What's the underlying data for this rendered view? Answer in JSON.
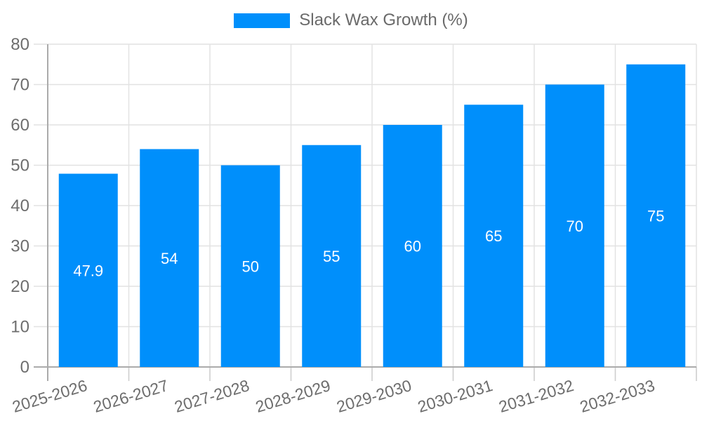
{
  "chart_data": {
    "type": "bar",
    "legend": "Slack Wax Growth (%)",
    "legend_position": "top-center",
    "categories": [
      "2025-2026",
      "2026-2027",
      "2027-2028",
      "2028-2029",
      "2029-2030",
      "2030-2031",
      "2031-2032",
      "2032-2033"
    ],
    "series": [
      {
        "name": "Slack Wax Growth (%)",
        "values": [
          47.9,
          54,
          50,
          55,
          60,
          65,
          70,
          75
        ]
      }
    ],
    "bar_value_labels": [
      "47.9",
      "54",
      "50",
      "55",
      "60",
      "65",
      "70",
      "75"
    ],
    "ylim": [
      0,
      80
    ],
    "ytick_step": 10,
    "ytick_labels": [
      "0",
      "10",
      "20",
      "30",
      "40",
      "50",
      "60",
      "70",
      "80"
    ],
    "grid": true,
    "x_label_rotation": -17,
    "colors": {
      "bar": "#008ffb",
      "bar_label": "#ffffff",
      "axis_line": "#ababab",
      "grid_line": "#e2e2e2",
      "tick_mark": "#cfcfcf",
      "tick_label": "#6d6d6d",
      "legend_text": "#6a6a6a",
      "background": "#ffffff"
    }
  }
}
